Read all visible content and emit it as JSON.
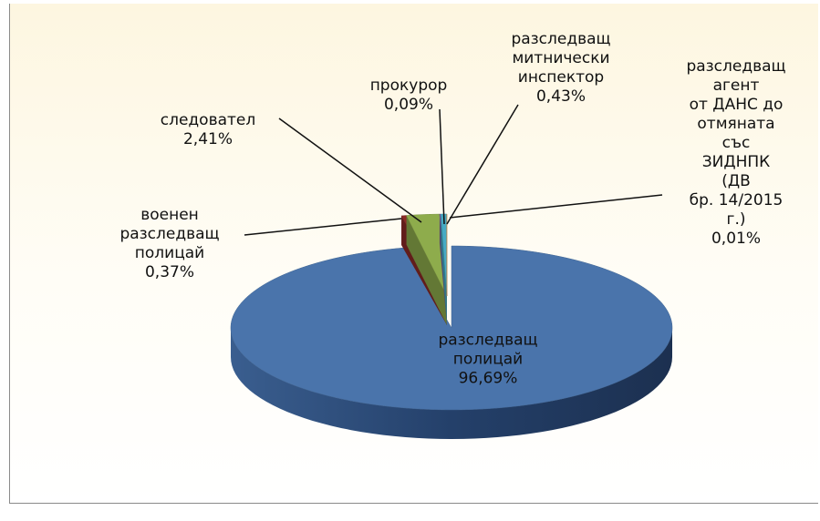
{
  "chart_data": {
    "type": "pie",
    "categories": [
      "разследващ\nполицай",
      "военен\nразследващ\nполицай",
      "следовател",
      "прокурор",
      "разследващ\nмитнически\nинспектор",
      "разследващ\nагент\nот ДАНС до\nотмяната със\nЗИДНПК (ДВ\nбр. 14/2015 г.)"
    ],
    "values": [
      96.69,
      0.37,
      2.41,
      0.09,
      0.43,
      0.01
    ],
    "value_labels": [
      "96,69%",
      "0,37%",
      "2,41%",
      "0,09%",
      "0,43%",
      "0,01%"
    ],
    "colors": [
      "#4a74ab",
      "#8c2a26",
      "#8eac4c",
      "#7a5c9c",
      "#46aac4",
      "#f0923e"
    ],
    "style": "3d"
  }
}
